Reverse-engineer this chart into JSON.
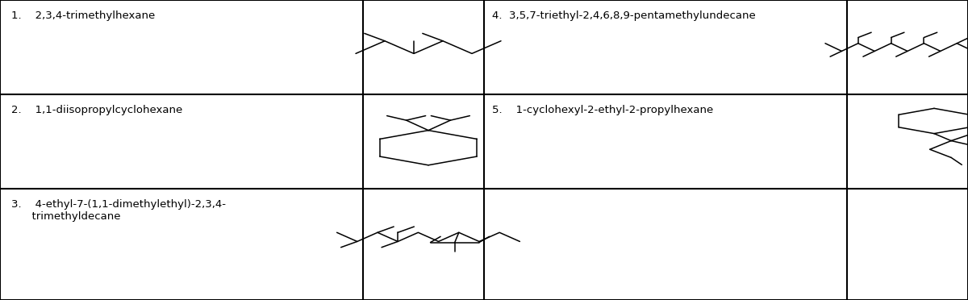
{
  "bg_color": "#ffffff",
  "line_color": "#000000",
  "text_color": "#000000",
  "font_size": 9.5,
  "cols": [
    0.0,
    0.375,
    0.5,
    0.875,
    1.0
  ],
  "rows": [
    1.0,
    0.685,
    0.37,
    0.0
  ],
  "labels": {
    "1": "1.    2,3,4-trimethylhexane",
    "2": "2.    1,1-diisopropylcyclohexane",
    "3": "3.    4-ethyl-7-(1,1-dimethylethyl)-2,3,4-\n      trimethyldecane",
    "4": "4.  3,5,7-triethyl-2,4,6,8,9-pentamethylundecane",
    "5": "5.    1-cyclohexyl-2-ethyl-2-propylhexane"
  }
}
